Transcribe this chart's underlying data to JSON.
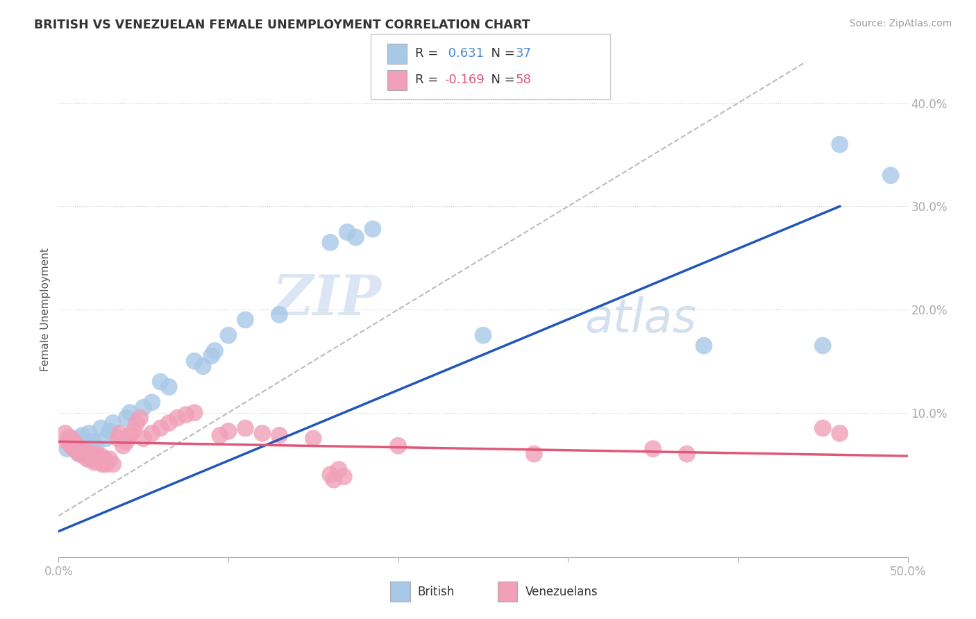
{
  "title": "BRITISH VS VENEZUELAN FEMALE UNEMPLOYMENT CORRELATION CHART",
  "source_text": "Source: ZipAtlas.com",
  "ylabel": "Female Unemployment",
  "x_range": [
    0.0,
    0.5
  ],
  "y_range": [
    -0.04,
    0.44
  ],
  "british_R": 0.631,
  "british_N": 37,
  "venezuelan_R": -0.169,
  "venezuelan_N": 58,
  "british_color": "#a8c8e8",
  "british_line_color": "#2255bb",
  "venezuelan_color": "#f0a0b8",
  "venezuelan_line_color": "#e05878",
  "diagonal_color": "#bbbbbb",
  "watermark_color": "#d0e0f0",
  "brit_line_x0": 0.0,
  "brit_line_y0": -0.015,
  "brit_line_x1": 0.46,
  "brit_line_y1": 0.3,
  "ven_line_x0": 0.0,
  "ven_line_y0": 0.072,
  "ven_line_x1": 0.5,
  "ven_line_y1": 0.058,
  "british_points": [
    [
      0.005,
      0.065
    ],
    [
      0.007,
      0.072
    ],
    [
      0.009,
      0.068
    ],
    [
      0.01,
      0.075
    ],
    [
      0.012,
      0.06
    ],
    [
      0.014,
      0.078
    ],
    [
      0.015,
      0.065
    ],
    [
      0.016,
      0.07
    ],
    [
      0.018,
      0.08
    ],
    [
      0.02,
      0.072
    ],
    [
      0.022,
      0.068
    ],
    [
      0.025,
      0.085
    ],
    [
      0.028,
      0.075
    ],
    [
      0.03,
      0.082
    ],
    [
      0.032,
      0.09
    ],
    [
      0.04,
      0.095
    ],
    [
      0.042,
      0.1
    ],
    [
      0.05,
      0.105
    ],
    [
      0.055,
      0.11
    ],
    [
      0.06,
      0.13
    ],
    [
      0.065,
      0.125
    ],
    [
      0.08,
      0.15
    ],
    [
      0.085,
      0.145
    ],
    [
      0.09,
      0.155
    ],
    [
      0.092,
      0.16
    ],
    [
      0.1,
      0.175
    ],
    [
      0.11,
      0.19
    ],
    [
      0.13,
      0.195
    ],
    [
      0.16,
      0.265
    ],
    [
      0.17,
      0.275
    ],
    [
      0.175,
      0.27
    ],
    [
      0.185,
      0.278
    ],
    [
      0.25,
      0.175
    ],
    [
      0.38,
      0.165
    ],
    [
      0.45,
      0.165
    ],
    [
      0.46,
      0.36
    ],
    [
      0.49,
      0.33
    ]
  ],
  "venezuelan_points": [
    [
      0.004,
      0.08
    ],
    [
      0.005,
      0.072
    ],
    [
      0.006,
      0.076
    ],
    [
      0.007,
      0.068
    ],
    [
      0.008,
      0.074
    ],
    [
      0.009,
      0.065
    ],
    [
      0.01,
      0.07
    ],
    [
      0.011,
      0.062
    ],
    [
      0.012,
      0.066
    ],
    [
      0.013,
      0.06
    ],
    [
      0.014,
      0.063
    ],
    [
      0.015,
      0.058
    ],
    [
      0.016,
      0.062
    ],
    [
      0.017,
      0.055
    ],
    [
      0.018,
      0.06
    ],
    [
      0.019,
      0.055
    ],
    [
      0.02,
      0.058
    ],
    [
      0.021,
      0.052
    ],
    [
      0.022,
      0.06
    ],
    [
      0.023,
      0.055
    ],
    [
      0.024,
      0.052
    ],
    [
      0.025,
      0.058
    ],
    [
      0.026,
      0.05
    ],
    [
      0.027,
      0.055
    ],
    [
      0.028,
      0.05
    ],
    [
      0.03,
      0.055
    ],
    [
      0.032,
      0.05
    ],
    [
      0.035,
      0.075
    ],
    [
      0.036,
      0.08
    ],
    [
      0.038,
      0.068
    ],
    [
      0.04,
      0.072
    ],
    [
      0.042,
      0.078
    ],
    [
      0.044,
      0.082
    ],
    [
      0.046,
      0.09
    ],
    [
      0.048,
      0.095
    ],
    [
      0.05,
      0.075
    ],
    [
      0.055,
      0.08
    ],
    [
      0.06,
      0.085
    ],
    [
      0.065,
      0.09
    ],
    [
      0.07,
      0.095
    ],
    [
      0.075,
      0.098
    ],
    [
      0.08,
      0.1
    ],
    [
      0.095,
      0.078
    ],
    [
      0.1,
      0.082
    ],
    [
      0.11,
      0.085
    ],
    [
      0.12,
      0.08
    ],
    [
      0.13,
      0.078
    ],
    [
      0.15,
      0.075
    ],
    [
      0.16,
      0.04
    ],
    [
      0.162,
      0.035
    ],
    [
      0.165,
      0.045
    ],
    [
      0.168,
      0.038
    ],
    [
      0.2,
      0.068
    ],
    [
      0.28,
      0.06
    ],
    [
      0.35,
      0.065
    ],
    [
      0.37,
      0.06
    ],
    [
      0.45,
      0.085
    ],
    [
      0.46,
      0.08
    ]
  ]
}
